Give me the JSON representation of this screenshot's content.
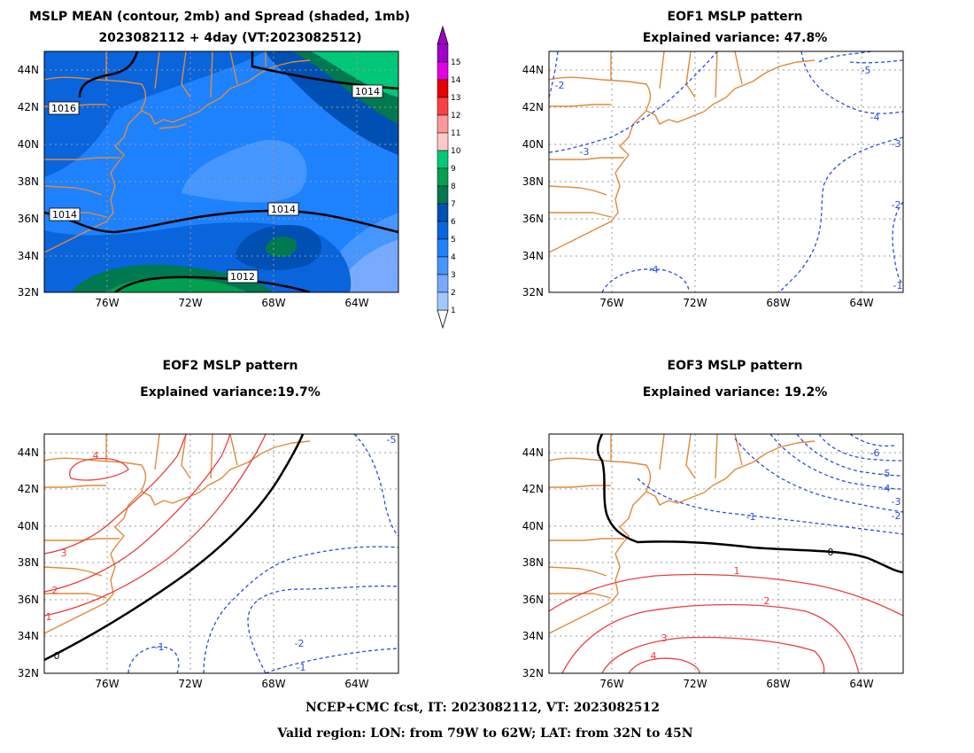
{
  "figure": {
    "panel1_title_line1": "MSLP MEAN (contour, 2mb) and Spread (shaded, 1mb)",
    "panel1_title_line2": "2023082112 + 4day (VT:2023082512)",
    "panel2_title_line1": "EOF1 MSLP pattern",
    "panel2_title_line2": "Explained variance: 47.8%",
    "panel3_title_line1": "EOF2 MSLP pattern",
    "panel3_title_line2": "Explained variance:19.7%",
    "panel4_title_line1": "EOF3 MSLP pattern",
    "panel4_title_line2": "Explained variance: 19.2%",
    "footer_line1": "NCEP+CMC fcst, IT: 2023082112, VT: 2023082512",
    "footer_line2": "Valid region: LON: from 79W to 62W; LAT: from 32N to 45N"
  },
  "axes": {
    "lon_ticks": [
      "76W",
      "72W",
      "68W",
      "64W"
    ],
    "lat_ticks": [
      "44N",
      "42N",
      "40N",
      "38N",
      "36N",
      "34N",
      "32N"
    ]
  },
  "colorbar": {
    "labels": [
      "15",
      "14",
      "13",
      "12",
      "11",
      "10",
      "9",
      "8",
      "7",
      "6",
      "5",
      "4",
      "3",
      "2",
      "1"
    ],
    "colors": [
      "#a000c8",
      "#e600e6",
      "#e60000",
      "#ff4040",
      "#ff9999",
      "#ffc8c8",
      "#00c878",
      "#00a050",
      "#007850",
      "#0050b4",
      "#0a64dc",
      "#1e82ff",
      "#4696ff",
      "#78aaff",
      "#a0c8ff"
    ]
  },
  "chart_data": {
    "type": "map",
    "region": {
      "lon_range": [
        -79,
        -62
      ],
      "lat_range": [
        32,
        45
      ]
    },
    "panels": [
      {
        "panel": "mslp_mean_spread",
        "contour_labels": [
          "1016",
          "1014",
          "1014",
          "1014",
          "1012"
        ],
        "shading": "spread (mb)"
      },
      {
        "panel": "eof1",
        "contour_labels": [
          "-2",
          "-3",
          "-4",
          "-5",
          "-4",
          "-3",
          "-2",
          "-1"
        ]
      },
      {
        "panel": "eof2",
        "contour_labels": [
          "4",
          "3",
          "2",
          "1",
          "0",
          "-1",
          "-2",
          "-1",
          "-5"
        ]
      },
      {
        "panel": "eof3",
        "contour_labels": [
          "0",
          "-1",
          "-2",
          "-3",
          "-4",
          "-5",
          "-6",
          "1",
          "2",
          "3",
          "4"
        ]
      }
    ]
  }
}
